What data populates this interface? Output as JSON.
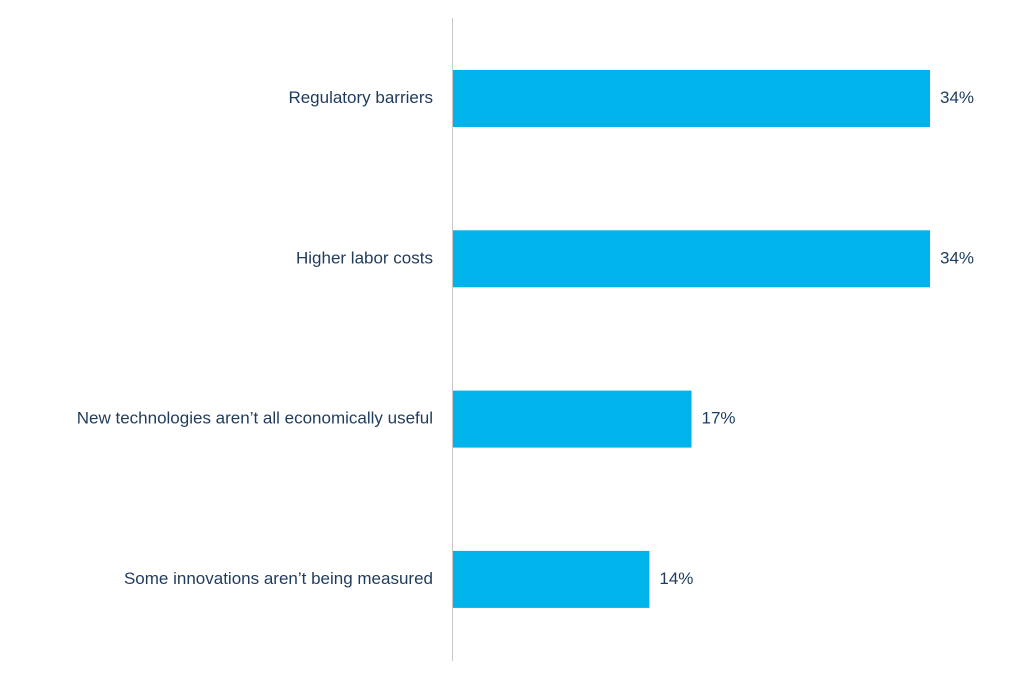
{
  "chart_data": {
    "type": "bar",
    "orientation": "horizontal",
    "categories": [
      "Regulatory barriers",
      "Higher labor costs",
      "New technologies aren’t all economically useful",
      "Some innovations aren’t being measured"
    ],
    "values": [
      34,
      34,
      17,
      14
    ],
    "value_labels": [
      "34%",
      "34%",
      "17%",
      "14%"
    ],
    "unit": "%",
    "title": "",
    "xlabel": "",
    "ylabel": "",
    "xlim": [
      0,
      34
    ],
    "grid": false,
    "legend": "none",
    "colors": {
      "bar": "#00b3ea",
      "axis": "#c8c8c8",
      "text": "#1f3b5c"
    }
  }
}
